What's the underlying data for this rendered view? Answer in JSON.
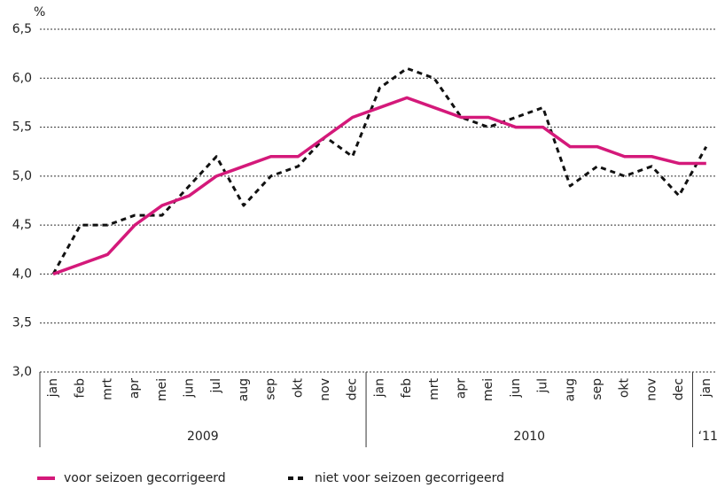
{
  "chart_data": {
    "type": "line",
    "y_unit": "%",
    "categories": [
      "jan",
      "feb",
      "mrt",
      "apr",
      "mei",
      "jun",
      "jul",
      "aug",
      "sep",
      "okt",
      "nov",
      "dec",
      "jan",
      "feb",
      "mrt",
      "apr",
      "mei",
      "jun",
      "jul",
      "aug",
      "sep",
      "okt",
      "nov",
      "dec",
      "jan"
    ],
    "years": [
      "2009",
      "2010",
      "‘11"
    ],
    "series": [
      {
        "name": "voor seizoen gecorrigeerd",
        "color": "#d4197a",
        "style": "solid",
        "values": [
          4.0,
          4.1,
          4.2,
          4.5,
          4.7,
          4.8,
          5.0,
          5.1,
          5.2,
          5.2,
          5.4,
          5.6,
          5.7,
          5.8,
          5.7,
          5.6,
          5.6,
          5.5,
          5.5,
          5.3,
          5.3,
          5.2,
          5.2,
          5.13,
          5.13
        ]
      },
      {
        "name": "niet voor seizoen gecorrigeerd",
        "color": "#111111",
        "style": "dashed",
        "values": [
          4.0,
          4.5,
          4.5,
          4.6,
          4.6,
          4.9,
          5.2,
          4.7,
          5.0,
          5.1,
          5.4,
          5.2,
          5.9,
          6.1,
          6.0,
          5.6,
          5.5,
          5.6,
          5.7,
          4.9,
          5.1,
          5.0,
          5.1,
          4.8,
          5.3
        ]
      }
    ],
    "ylim": [
      3.0,
      6.5
    ],
    "yticks": [
      {
        "value": 3.0,
        "label": "3,0"
      },
      {
        "value": 3.5,
        "label": "3,5"
      },
      {
        "value": 4.0,
        "label": "4,0"
      },
      {
        "value": 4.5,
        "label": "4,5"
      },
      {
        "value": 5.0,
        "label": "5,0"
      },
      {
        "value": 5.5,
        "label": "5,5"
      },
      {
        "value": 6.0,
        "label": "6,0"
      },
      {
        "value": 6.5,
        "label": "6,5"
      }
    ],
    "grid": true
  }
}
